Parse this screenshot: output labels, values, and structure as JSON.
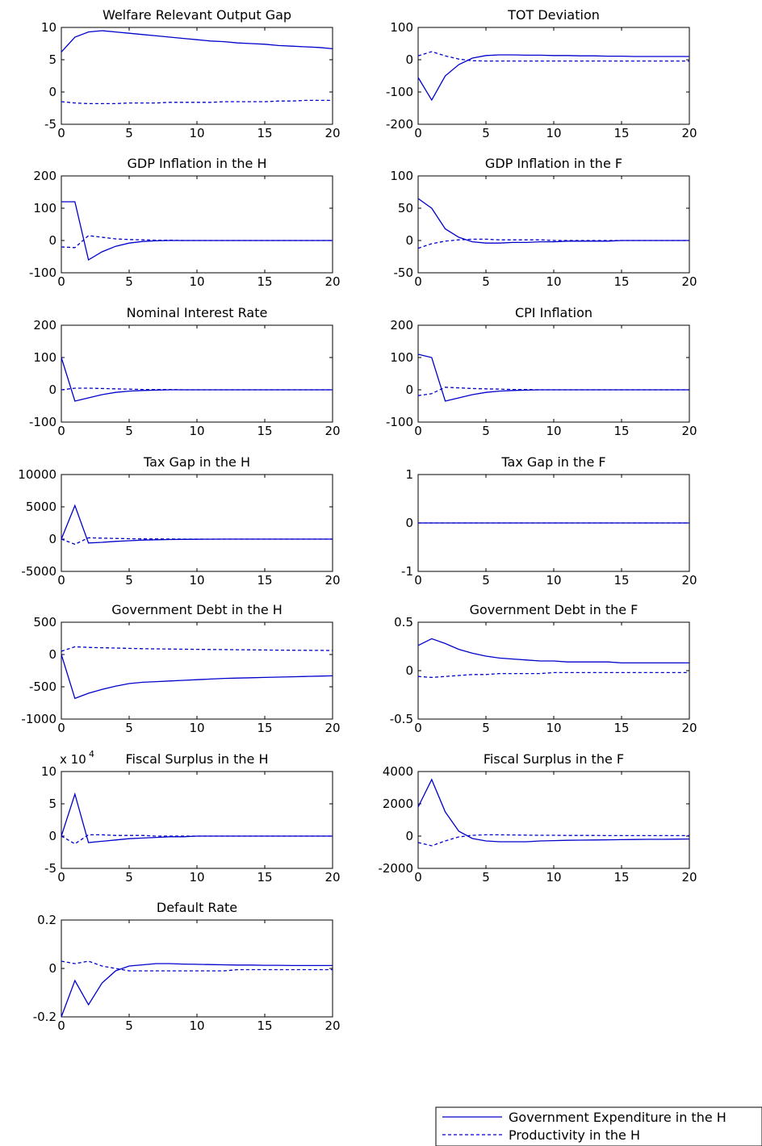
{
  "figure": {
    "line_color": "#0000cc",
    "legend": {
      "placement": "bottom-right",
      "entries": [
        {
          "label": "Government Expenditure in the H",
          "style": "solid"
        },
        {
          "label": "Productivity in the H",
          "style": "dashed"
        }
      ]
    }
  },
  "chart_data": [
    {
      "type": "line",
      "title": "Welfare Relevant Output Gap",
      "xlim": [
        0,
        20
      ],
      "ylim": [
        -5,
        10
      ],
      "xticks": [
        "0",
        "5",
        "10",
        "15",
        "20"
      ],
      "yticks": [
        "-5",
        "0",
        "5",
        "10"
      ],
      "x": [
        0,
        1,
        2,
        3,
        4,
        5,
        6,
        7,
        8,
        9,
        10,
        11,
        12,
        13,
        14,
        15,
        16,
        17,
        18,
        19,
        20
      ],
      "series": [
        {
          "style": "solid",
          "values": [
            6.2,
            8.5,
            9.3,
            9.5,
            9.3,
            9.1,
            8.9,
            8.7,
            8.5,
            8.3,
            8.1,
            7.9,
            7.8,
            7.6,
            7.5,
            7.4,
            7.2,
            7.1,
            7.0,
            6.9,
            6.7
          ]
        },
        {
          "style": "dashed",
          "values": [
            -1.5,
            -1.7,
            -1.8,
            -1.8,
            -1.8,
            -1.7,
            -1.7,
            -1.7,
            -1.6,
            -1.6,
            -1.6,
            -1.6,
            -1.5,
            -1.5,
            -1.5,
            -1.5,
            -1.4,
            -1.4,
            -1.3,
            -1.3,
            -1.3
          ]
        }
      ]
    },
    {
      "type": "line",
      "title": "TOT Deviation",
      "xlim": [
        0,
        20
      ],
      "ylim": [
        -200,
        100
      ],
      "xticks": [
        "0",
        "5",
        "10",
        "15",
        "20"
      ],
      "yticks": [
        "-200",
        "-100",
        "0",
        "100"
      ],
      "x": [
        0,
        1,
        2,
        3,
        4,
        5,
        6,
        7,
        8,
        9,
        10,
        11,
        12,
        13,
        14,
        15,
        16,
        17,
        18,
        19,
        20
      ],
      "series": [
        {
          "style": "solid",
          "values": [
            -55,
            -125,
            -50,
            -15,
            5,
            13,
            15,
            15,
            14,
            14,
            13,
            13,
            12,
            12,
            11,
            11,
            10,
            10,
            10,
            10,
            10
          ]
        },
        {
          "style": "dashed",
          "values": [
            12,
            25,
            12,
            2,
            -3,
            -4,
            -4,
            -4,
            -4,
            -4,
            -4,
            -4,
            -4,
            -4,
            -4,
            -4,
            -4,
            -4,
            -4,
            -4,
            -4
          ]
        }
      ]
    },
    {
      "type": "line",
      "title": "GDP Inflation in the H",
      "xlim": [
        0,
        20
      ],
      "ylim": [
        -100,
        200
      ],
      "xticks": [
        "0",
        "5",
        "10",
        "15",
        "20"
      ],
      "yticks": [
        "-100",
        "0",
        "100",
        "200"
      ],
      "x": [
        0,
        1,
        2,
        3,
        4,
        5,
        6,
        7,
        8,
        9,
        10,
        11,
        12,
        13,
        14,
        15,
        16,
        17,
        18,
        19,
        20
      ],
      "series": [
        {
          "style": "solid",
          "values": [
            120,
            120,
            -60,
            -35,
            -18,
            -8,
            -3,
            -1,
            0,
            0,
            0,
            0,
            0,
            0,
            0,
            0,
            0,
            0,
            0,
            0,
            0
          ]
        },
        {
          "style": "dashed",
          "values": [
            -20,
            -22,
            15,
            10,
            5,
            3,
            2,
            1,
            1,
            0,
            0,
            0,
            0,
            0,
            0,
            0,
            0,
            0,
            0,
            0,
            0
          ]
        }
      ]
    },
    {
      "type": "line",
      "title": "GDP Inflation in the F",
      "xlim": [
        0,
        20
      ],
      "ylim": [
        -50,
        100
      ],
      "xticks": [
        "0",
        "5",
        "10",
        "15",
        "20"
      ],
      "yticks": [
        "-50",
        "0",
        "50",
        "100"
      ],
      "x": [
        0,
        1,
        2,
        3,
        4,
        5,
        6,
        7,
        8,
        9,
        10,
        11,
        12,
        13,
        14,
        15,
        16,
        17,
        18,
        19,
        20
      ],
      "series": [
        {
          "style": "solid",
          "values": [
            65,
            50,
            18,
            5,
            -2,
            -4,
            -4,
            -3,
            -3,
            -2,
            -2,
            -1,
            -1,
            -1,
            -1,
            0,
            0,
            0,
            0,
            0,
            0
          ]
        },
        {
          "style": "dashed",
          "values": [
            -12,
            -5,
            -1,
            1,
            2,
            2,
            1,
            1,
            1,
            1,
            0,
            0,
            0,
            0,
            0,
            0,
            0,
            0,
            0,
            0,
            0
          ]
        }
      ]
    },
    {
      "type": "line",
      "title": "Nominal Interest Rate",
      "xlim": [
        0,
        20
      ],
      "ylim": [
        -100,
        200
      ],
      "xticks": [
        "0",
        "5",
        "10",
        "15",
        "20"
      ],
      "yticks": [
        "-100",
        "0",
        "100",
        "200"
      ],
      "x": [
        0,
        1,
        2,
        3,
        4,
        5,
        6,
        7,
        8,
        9,
        10,
        11,
        12,
        13,
        14,
        15,
        16,
        17,
        18,
        19,
        20
      ],
      "series": [
        {
          "style": "solid",
          "values": [
            100,
            -35,
            -25,
            -15,
            -8,
            -4,
            -2,
            -1,
            0,
            0,
            0,
            0,
            0,
            0,
            0,
            0,
            0,
            0,
            0,
            0,
            0
          ]
        },
        {
          "style": "dashed",
          "values": [
            0,
            5,
            5,
            4,
            3,
            2,
            1,
            1,
            1,
            0,
            0,
            0,
            0,
            0,
            0,
            0,
            0,
            0,
            0,
            0,
            0
          ]
        }
      ]
    },
    {
      "type": "line",
      "title": "CPI Inflation",
      "xlim": [
        0,
        20
      ],
      "ylim": [
        -100,
        200
      ],
      "xticks": [
        "0",
        "5",
        "10",
        "15",
        "20"
      ],
      "yticks": [
        "-100",
        "0",
        "100",
        "200"
      ],
      "x": [
        0,
        1,
        2,
        3,
        4,
        5,
        6,
        7,
        8,
        9,
        10,
        11,
        12,
        13,
        14,
        15,
        16,
        17,
        18,
        19,
        20
      ],
      "series": [
        {
          "style": "solid",
          "values": [
            110,
            100,
            -35,
            -25,
            -15,
            -8,
            -4,
            -2,
            -1,
            0,
            0,
            0,
            0,
            0,
            0,
            0,
            0,
            0,
            0,
            0,
            0
          ]
        },
        {
          "style": "dashed",
          "values": [
            -18,
            -12,
            8,
            6,
            4,
            3,
            2,
            1,
            1,
            0,
            0,
            0,
            0,
            0,
            0,
            0,
            0,
            0,
            0,
            0,
            0
          ]
        }
      ]
    },
    {
      "type": "line",
      "title": "Tax Gap in the H",
      "xlim": [
        0,
        20
      ],
      "ylim": [
        -5000,
        10000
      ],
      "xticks": [
        "0",
        "5",
        "10",
        "15",
        "20"
      ],
      "yticks": [
        "-5000",
        "0",
        "5000",
        "10000"
      ],
      "x": [
        0,
        1,
        2,
        3,
        4,
        5,
        6,
        7,
        8,
        9,
        10,
        11,
        12,
        13,
        14,
        15,
        16,
        17,
        18,
        19,
        20
      ],
      "series": [
        {
          "style": "solid",
          "values": [
            0,
            5200,
            -600,
            -500,
            -350,
            -250,
            -150,
            -100,
            -60,
            -40,
            -20,
            -10,
            0,
            0,
            0,
            0,
            0,
            0,
            0,
            0,
            0
          ]
        },
        {
          "style": "dashed",
          "values": [
            0,
            -800,
            200,
            150,
            100,
            60,
            40,
            20,
            10,
            0,
            0,
            0,
            0,
            0,
            0,
            0,
            0,
            0,
            0,
            0,
            0
          ]
        }
      ]
    },
    {
      "type": "line",
      "title": "Tax Gap in the F",
      "xlim": [
        0,
        20
      ],
      "ylim": [
        -1,
        1
      ],
      "xticks": [
        "0",
        "5",
        "10",
        "15",
        "20"
      ],
      "yticks": [
        "-1",
        "0",
        "1"
      ],
      "x": [
        0,
        20
      ],
      "series": [
        {
          "style": "solid",
          "values": [
            0,
            0
          ]
        },
        {
          "style": "dashed",
          "values": [
            0,
            0
          ]
        }
      ]
    },
    {
      "type": "line",
      "title": "Government Debt in the H",
      "xlim": [
        0,
        20
      ],
      "ylim": [
        -1000,
        500
      ],
      "xticks": [
        "0",
        "5",
        "10",
        "15",
        "20"
      ],
      "yticks": [
        "-1000",
        "-500",
        "0",
        "500"
      ],
      "x": [
        0,
        1,
        2,
        3,
        4,
        5,
        6,
        7,
        8,
        9,
        10,
        11,
        12,
        13,
        14,
        15,
        16,
        17,
        18,
        19,
        20
      ],
      "series": [
        {
          "style": "solid",
          "values": [
            0,
            -680,
            -600,
            -540,
            -490,
            -450,
            -430,
            -420,
            -410,
            -400,
            -390,
            -380,
            -370,
            -365,
            -360,
            -355,
            -350,
            -345,
            -340,
            -335,
            -330
          ]
        },
        {
          "style": "dashed",
          "values": [
            50,
            120,
            110,
            105,
            100,
            95,
            90,
            88,
            85,
            82,
            80,
            78,
            76,
            74,
            72,
            70,
            68,
            66,
            65,
            64,
            63
          ]
        }
      ]
    },
    {
      "type": "line",
      "title": "Government Debt in the F",
      "xlim": [
        0,
        20
      ],
      "ylim": [
        -0.5,
        0.5
      ],
      "xticks": [
        "0",
        "5",
        "10",
        "15",
        "20"
      ],
      "yticks": [
        "-0.5",
        "0",
        "0.5"
      ],
      "x": [
        0,
        1,
        2,
        3,
        4,
        5,
        6,
        7,
        8,
        9,
        10,
        11,
        12,
        13,
        14,
        15,
        16,
        17,
        18,
        19,
        20
      ],
      "series": [
        {
          "style": "solid",
          "values": [
            0.26,
            0.33,
            0.28,
            0.22,
            0.18,
            0.15,
            0.13,
            0.12,
            0.11,
            0.1,
            0.1,
            0.09,
            0.09,
            0.09,
            0.09,
            0.08,
            0.08,
            0.08,
            0.08,
            0.08,
            0.08
          ]
        },
        {
          "style": "dashed",
          "values": [
            -0.06,
            -0.07,
            -0.06,
            -0.05,
            -0.04,
            -0.04,
            -0.03,
            -0.03,
            -0.03,
            -0.03,
            -0.02,
            -0.02,
            -0.02,
            -0.02,
            -0.02,
            -0.02,
            -0.02,
            -0.02,
            -0.02,
            -0.02,
            -0.02
          ]
        }
      ]
    },
    {
      "type": "line",
      "title": "Fiscal Surplus in the H",
      "multiplier_label": "x 10",
      "multiplier_exp": "4",
      "xlim": [
        0,
        20
      ],
      "ylim": [
        -5,
        10
      ],
      "xticks": [
        "0",
        "5",
        "10",
        "15",
        "20"
      ],
      "yticks": [
        "-5",
        "0",
        "5",
        "10"
      ],
      "x": [
        0,
        1,
        2,
        3,
        4,
        5,
        6,
        7,
        8,
        9,
        10,
        11,
        12,
        13,
        14,
        15,
        16,
        17,
        18,
        19,
        20
      ],
      "series": [
        {
          "style": "solid",
          "values": [
            0,
            6.5,
            -1,
            -0.8,
            -0.6,
            -0.4,
            -0.3,
            -0.2,
            -0.1,
            -0.1,
            0,
            0,
            0,
            0,
            0,
            0,
            0,
            0,
            0,
            0,
            0
          ]
        },
        {
          "style": "dashed",
          "values": [
            0,
            -1.2,
            0.2,
            0.2,
            0.1,
            0.1,
            0.1,
            0,
            0,
            0,
            0,
            0,
            0,
            0,
            0,
            0,
            0,
            0,
            0,
            0,
            0
          ]
        }
      ]
    },
    {
      "type": "line",
      "title": "Fiscal Surplus in the F",
      "xlim": [
        0,
        20
      ],
      "ylim": [
        -2000,
        4000
      ],
      "xticks": [
        "0",
        "5",
        "10",
        "15",
        "20"
      ],
      "yticks": [
        "-2000",
        "0",
        "2000",
        "4000"
      ],
      "x": [
        0,
        1,
        2,
        3,
        4,
        5,
        6,
        7,
        8,
        9,
        10,
        11,
        12,
        13,
        14,
        15,
        16,
        17,
        18,
        19,
        20
      ],
      "series": [
        {
          "style": "solid",
          "values": [
            1800,
            3500,
            1500,
            300,
            -150,
            -300,
            -350,
            -350,
            -350,
            -300,
            -280,
            -260,
            -250,
            -240,
            -230,
            -220,
            -210,
            -200,
            -200,
            -190,
            -180
          ]
        },
        {
          "style": "dashed",
          "values": [
            -400,
            -600,
            -300,
            -50,
            50,
            80,
            80,
            70,
            60,
            50,
            50,
            40,
            40,
            40,
            30,
            30,
            30,
            30,
            30,
            30,
            30
          ]
        }
      ]
    },
    {
      "type": "line",
      "title": "Default Rate",
      "xlim": [
        0,
        20
      ],
      "ylim": [
        -0.2,
        0.2
      ],
      "xticks": [
        "0",
        "5",
        "10",
        "15",
        "20"
      ],
      "yticks": [
        "-0.2",
        "0",
        "0.2"
      ],
      "x": [
        0,
        1,
        2,
        3,
        4,
        5,
        6,
        7,
        8,
        9,
        10,
        11,
        12,
        13,
        14,
        15,
        16,
        17,
        18,
        19,
        20
      ],
      "series": [
        {
          "style": "solid",
          "values": [
            -0.2,
            -0.05,
            -0.15,
            -0.06,
            -0.01,
            0.01,
            0.015,
            0.02,
            0.02,
            0.018,
            0.017,
            0.016,
            0.015,
            0.014,
            0.014,
            0.013,
            0.013,
            0.012,
            0.012,
            0.012,
            0.012
          ]
        },
        {
          "style": "dashed",
          "values": [
            0.03,
            0.02,
            0.03,
            0.01,
            0.0,
            -0.01,
            -0.01,
            -0.01,
            -0.01,
            -0.01,
            -0.01,
            -0.01,
            -0.01,
            -0.005,
            -0.005,
            -0.005,
            -0.005,
            -0.005,
            -0.005,
            -0.005,
            -0.005
          ]
        }
      ]
    }
  ]
}
